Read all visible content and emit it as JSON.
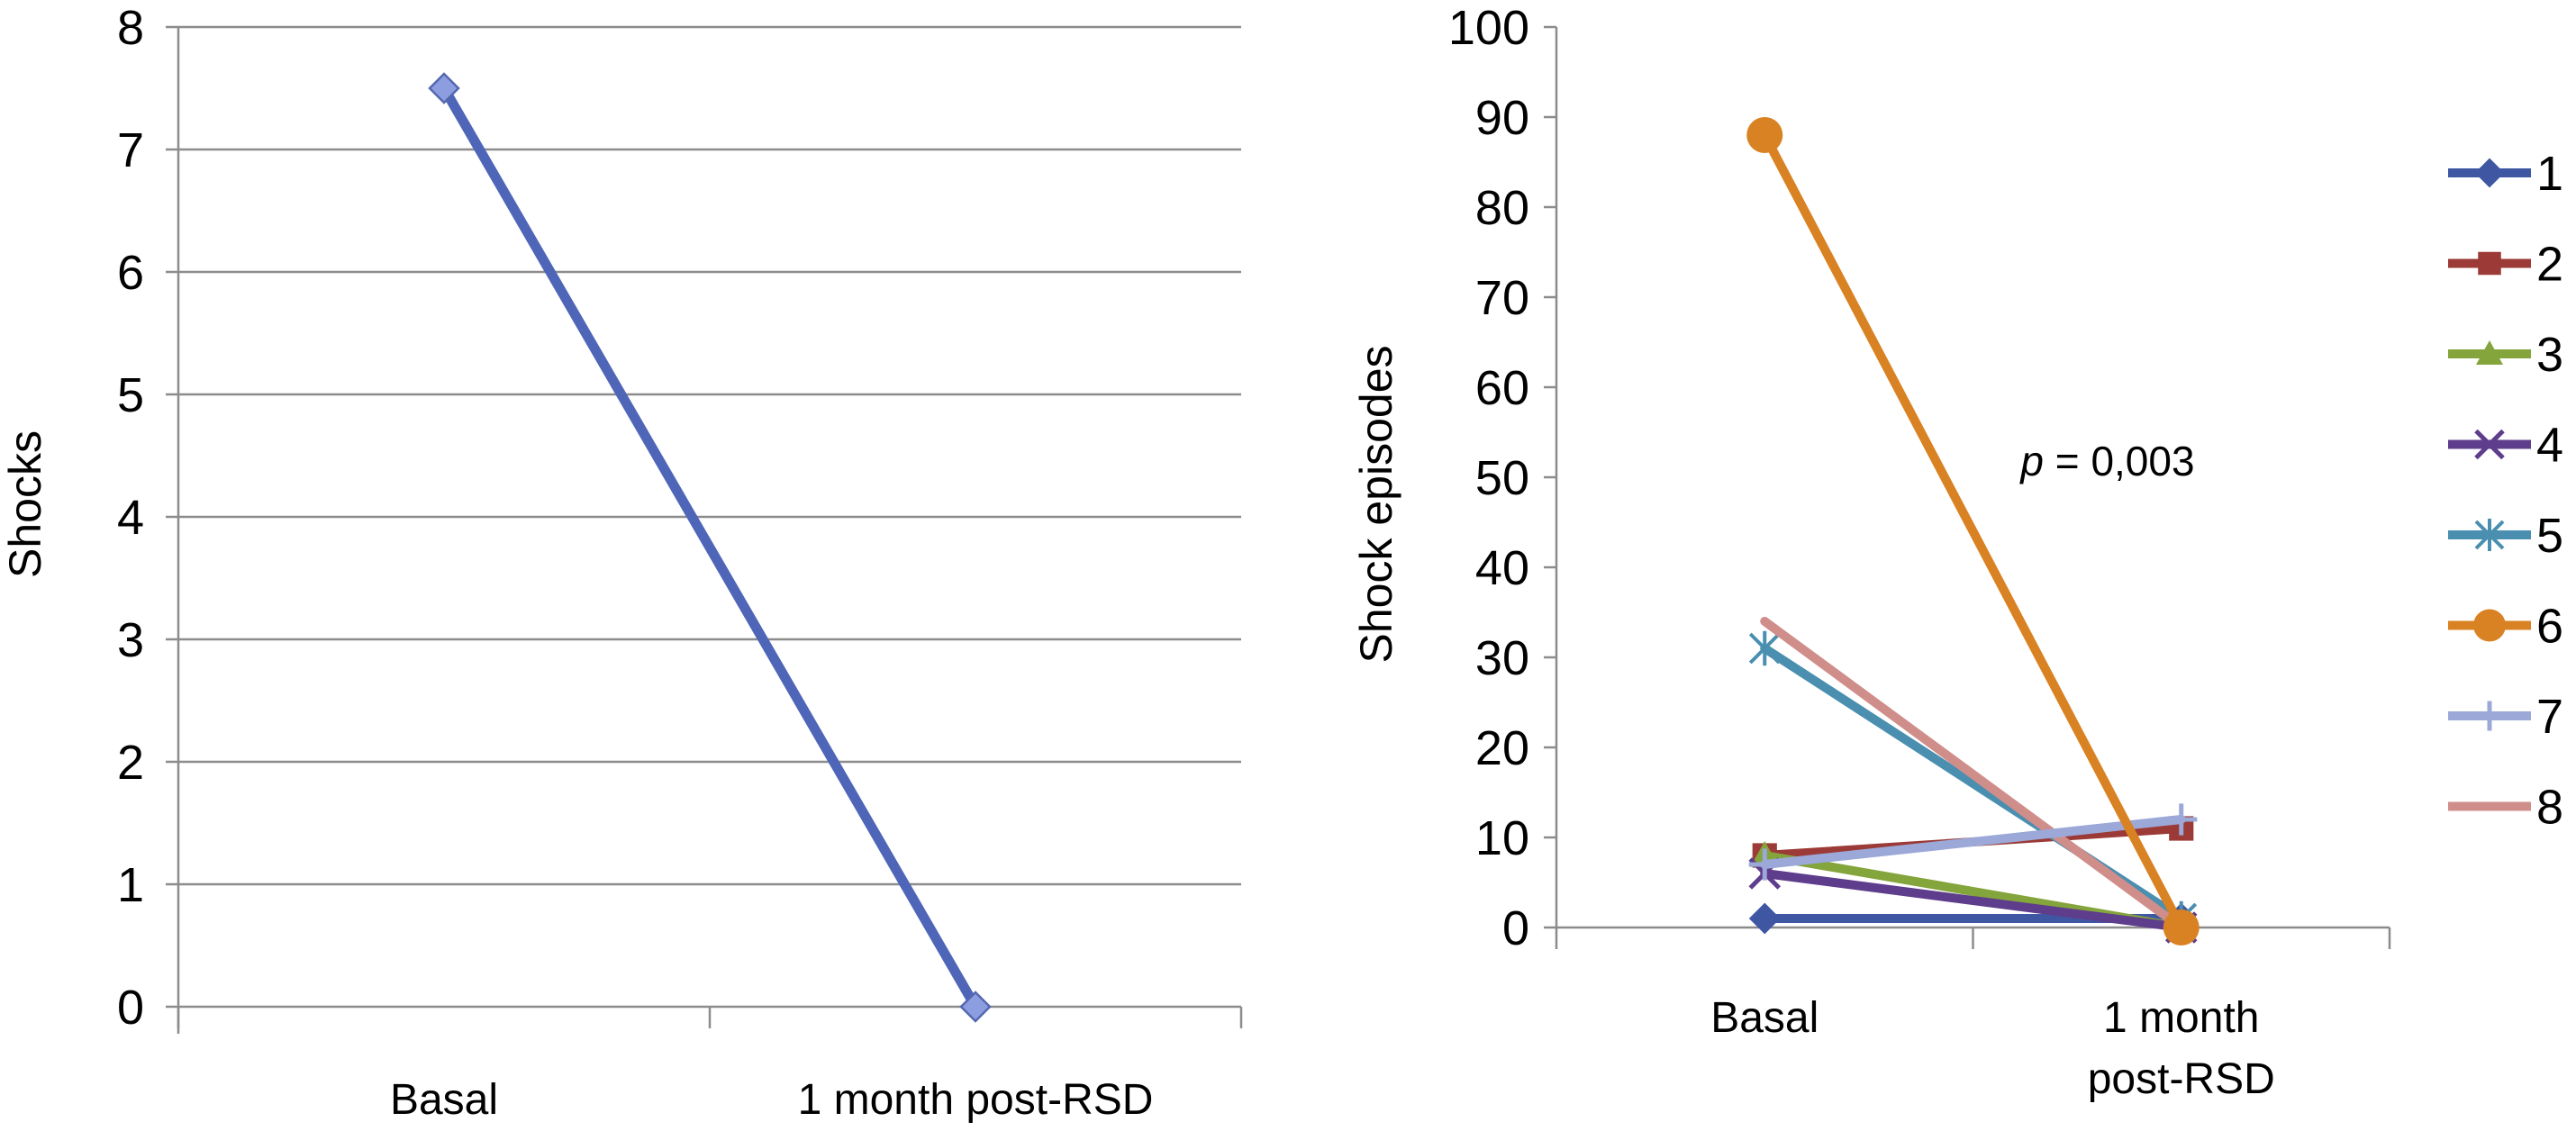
{
  "chart_data": [
    {
      "type": "line",
      "title": "",
      "xlabel": "",
      "ylabel": "Shocks",
      "categories": [
        "Basal",
        "1 month post-RSD"
      ],
      "ylim": [
        0,
        8
      ],
      "yticks": [
        "0",
        "1",
        "2",
        "3",
        "4",
        "5",
        "6",
        "7",
        "8"
      ],
      "grid": true,
      "legend": "none",
      "series": [
        {
          "values": [
            7.5,
            0
          ],
          "color": "#4f66b8",
          "marker": "diamond"
        }
      ]
    },
    {
      "type": "line",
      "title": "",
      "xlabel": "",
      "ylabel": "Shock episodes",
      "categories": [
        "Basal",
        "1 month post-RSD"
      ],
      "category_lines": [
        [
          "Basal"
        ],
        [
          "1 month",
          "post-RSD"
        ]
      ],
      "ylim": [
        0,
        100
      ],
      "yticks": [
        "0",
        "10",
        "20",
        "30",
        "40",
        "50",
        "60",
        "70",
        "80",
        "90",
        "100"
      ],
      "grid": false,
      "legend": "right",
      "annotation": {
        "italic": "p",
        "rest": " = 0,003"
      },
      "series": [
        {
          "name": "1",
          "values": [
            1,
            1
          ],
          "color": "#3f57a3",
          "marker": "diamond"
        },
        {
          "name": "2",
          "values": [
            8,
            11
          ],
          "color": "#9b3a36",
          "marker": "square"
        },
        {
          "name": "3",
          "values": [
            8,
            0
          ],
          "color": "#84a43c",
          "marker": "triangle"
        },
        {
          "name": "4",
          "values": [
            6,
            0
          ],
          "color": "#5e3d8c",
          "marker": "x"
        },
        {
          "name": "5",
          "values": [
            31,
            1
          ],
          "color": "#4a8fb0",
          "marker": "asterisk"
        },
        {
          "name": "6",
          "values": [
            88,
            0
          ],
          "color": "#d98223",
          "marker": "circle"
        },
        {
          "name": "7",
          "values": [
            7,
            12
          ],
          "color": "#9ba8d8",
          "marker": "plus"
        },
        {
          "name": "8",
          "values": [
            34,
            0
          ],
          "color": "#d08e8b",
          "marker": "none"
        }
      ]
    }
  ]
}
